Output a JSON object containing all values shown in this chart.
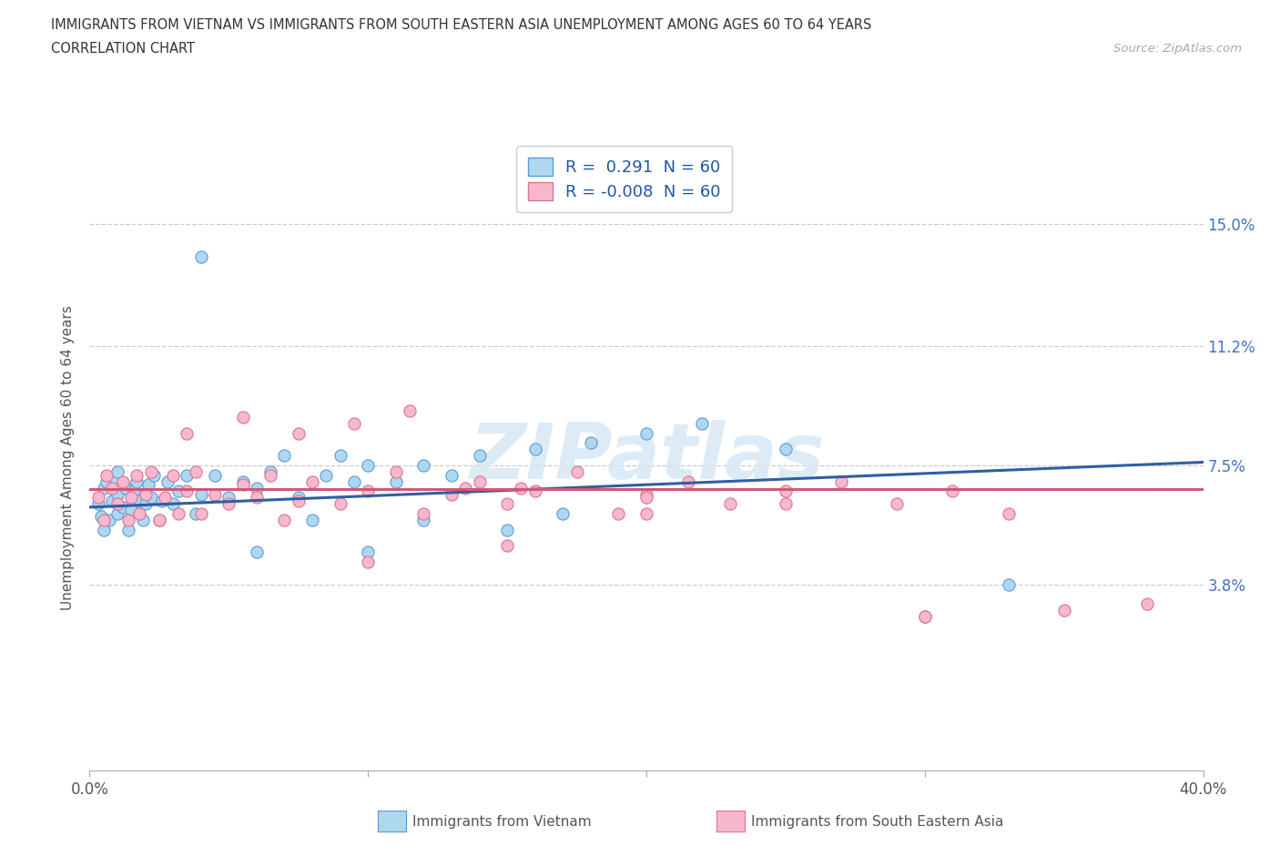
{
  "title_line1": "IMMIGRANTS FROM VIETNAM VS IMMIGRANTS FROM SOUTH EASTERN ASIA UNEMPLOYMENT AMONG AGES 60 TO 64 YEARS",
  "title_line2": "CORRELATION CHART",
  "source": "Source: ZipAtlas.com",
  "ylabel": "Unemployment Among Ages 60 to 64 years",
  "xlim": [
    0.0,
    0.4
  ],
  "ylim": [
    -0.02,
    0.175
  ],
  "xtick_vals": [
    0.0,
    0.1,
    0.2,
    0.3,
    0.4
  ],
  "xtick_labels": [
    "0.0%",
    "",
    "",
    "",
    "40.0%"
  ],
  "ytick_positions": [
    0.038,
    0.075,
    0.112,
    0.15
  ],
  "ytick_labels": [
    "3.8%",
    "7.5%",
    "11.2%",
    "15.0%"
  ],
  "legend_label1": "Immigrants from Vietnam",
  "legend_label2": "Immigrants from South Eastern Asia",
  "color_vietnam_face": "#ADD8F0",
  "color_vietnam_edge": "#5B9BD5",
  "color_sea_face": "#F5B8CF",
  "color_sea_edge": "#E07090",
  "color_line_vietnam": "#2E5FA3",
  "color_line_sea": "#D05878",
  "watermark": "ZIPatlas",
  "R_vietnam": 0.291,
  "R_sea": -0.008,
  "N": 60,
  "vietnam_x": [
    0.003,
    0.004,
    0.005,
    0.005,
    0.006,
    0.007,
    0.008,
    0.009,
    0.01,
    0.01,
    0.01,
    0.012,
    0.013,
    0.014,
    0.015,
    0.016,
    0.017,
    0.018,
    0.019,
    0.02,
    0.021,
    0.022,
    0.023,
    0.025,
    0.026,
    0.028,
    0.03,
    0.032,
    0.035,
    0.038,
    0.04,
    0.045,
    0.05,
    0.055,
    0.06,
    0.065,
    0.07,
    0.075,
    0.085,
    0.09,
    0.095,
    0.1,
    0.11,
    0.12,
    0.13,
    0.14,
    0.16,
    0.18,
    0.2,
    0.22,
    0.04,
    0.06,
    0.08,
    0.1,
    0.12,
    0.15,
    0.17,
    0.25,
    0.3,
    0.33
  ],
  "vietnam_y": [
    0.063,
    0.059,
    0.055,
    0.068,
    0.07,
    0.058,
    0.064,
    0.071,
    0.06,
    0.066,
    0.073,
    0.062,
    0.068,
    0.055,
    0.061,
    0.067,
    0.07,
    0.064,
    0.058,
    0.063,
    0.069,
    0.065,
    0.072,
    0.058,
    0.064,
    0.07,
    0.063,
    0.067,
    0.072,
    0.06,
    0.066,
    0.072,
    0.065,
    0.07,
    0.068,
    0.073,
    0.078,
    0.065,
    0.072,
    0.078,
    0.07,
    0.075,
    0.07,
    0.075,
    0.072,
    0.078,
    0.08,
    0.082,
    0.085,
    0.088,
    0.14,
    0.048,
    0.058,
    0.048,
    0.058,
    0.055,
    0.06,
    0.08,
    0.028,
    0.038
  ],
  "sea_x": [
    0.003,
    0.005,
    0.006,
    0.008,
    0.01,
    0.012,
    0.014,
    0.015,
    0.017,
    0.018,
    0.02,
    0.022,
    0.025,
    0.027,
    0.03,
    0.032,
    0.035,
    0.038,
    0.04,
    0.045,
    0.05,
    0.055,
    0.06,
    0.065,
    0.07,
    0.075,
    0.08,
    0.09,
    0.1,
    0.11,
    0.12,
    0.13,
    0.14,
    0.15,
    0.16,
    0.175,
    0.19,
    0.2,
    0.215,
    0.23,
    0.25,
    0.27,
    0.29,
    0.31,
    0.33,
    0.035,
    0.055,
    0.075,
    0.095,
    0.115,
    0.135,
    0.155,
    0.2,
    0.25,
    0.3,
    0.35,
    0.38,
    0.1,
    0.15,
    0.2
  ],
  "sea_y": [
    0.065,
    0.058,
    0.072,
    0.068,
    0.063,
    0.07,
    0.058,
    0.065,
    0.072,
    0.06,
    0.066,
    0.073,
    0.058,
    0.065,
    0.072,
    0.06,
    0.067,
    0.073,
    0.06,
    0.066,
    0.063,
    0.069,
    0.065,
    0.072,
    0.058,
    0.064,
    0.07,
    0.063,
    0.067,
    0.073,
    0.06,
    0.066,
    0.07,
    0.063,
    0.067,
    0.073,
    0.06,
    0.066,
    0.07,
    0.063,
    0.067,
    0.07,
    0.063,
    0.067,
    0.06,
    0.085,
    0.09,
    0.085,
    0.088,
    0.092,
    0.068,
    0.068,
    0.065,
    0.063,
    0.028,
    0.03,
    0.032,
    0.045,
    0.05,
    0.06
  ]
}
